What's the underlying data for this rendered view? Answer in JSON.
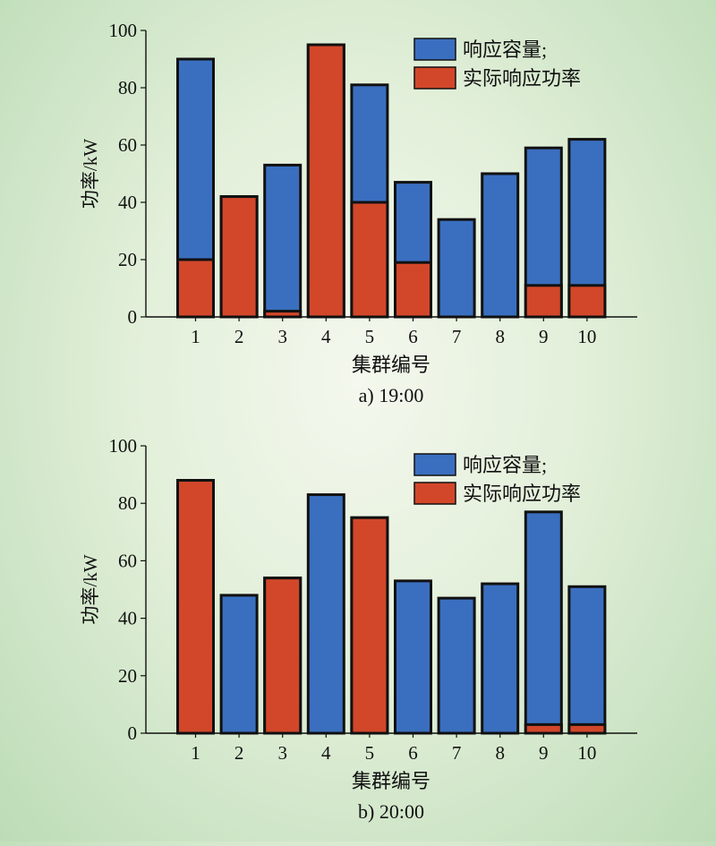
{
  "colors": {
    "capacity": "#3a6fbf",
    "actual": "#d2472a",
    "outline": "#111111"
  },
  "chart_data": [
    {
      "type": "bar",
      "caption": "a) 19:00",
      "xlabel": "集群编号",
      "ylabel": "功率/kW",
      "ylim": [
        0,
        100
      ],
      "yticks": [
        0,
        20,
        40,
        60,
        80,
        100
      ],
      "categories": [
        "1",
        "2",
        "3",
        "4",
        "5",
        "6",
        "7",
        "8",
        "9",
        "10"
      ],
      "legend": {
        "position": "top-right",
        "entries": [
          "响应容量;",
          "实际响应功率"
        ]
      },
      "series": [
        {
          "name": "响应容量;",
          "values": [
            90,
            42,
            53,
            95,
            81,
            47,
            34,
            50,
            59,
            62
          ]
        },
        {
          "name": "实际响应功率",
          "values": [
            20,
            42,
            2,
            95,
            40,
            19,
            0,
            0,
            11,
            11
          ]
        }
      ]
    },
    {
      "type": "bar",
      "caption": "b) 20:00",
      "xlabel": "集群编号",
      "ylabel": "功率/kW",
      "ylim": [
        0,
        100
      ],
      "yticks": [
        0,
        20,
        40,
        60,
        80,
        100
      ],
      "categories": [
        "1",
        "2",
        "3",
        "4",
        "5",
        "6",
        "7",
        "8",
        "9",
        "10"
      ],
      "legend": {
        "position": "top-right",
        "entries": [
          "响应容量;",
          "实际响应功率"
        ]
      },
      "series": [
        {
          "name": "响应容量;",
          "values": [
            88,
            48,
            54,
            83,
            75,
            53,
            47,
            52,
            77,
            51
          ]
        },
        {
          "name": "实际响应功率",
          "values": [
            88,
            0,
            54,
            0,
            75,
            0,
            0,
            0,
            3,
            3
          ]
        }
      ]
    }
  ]
}
